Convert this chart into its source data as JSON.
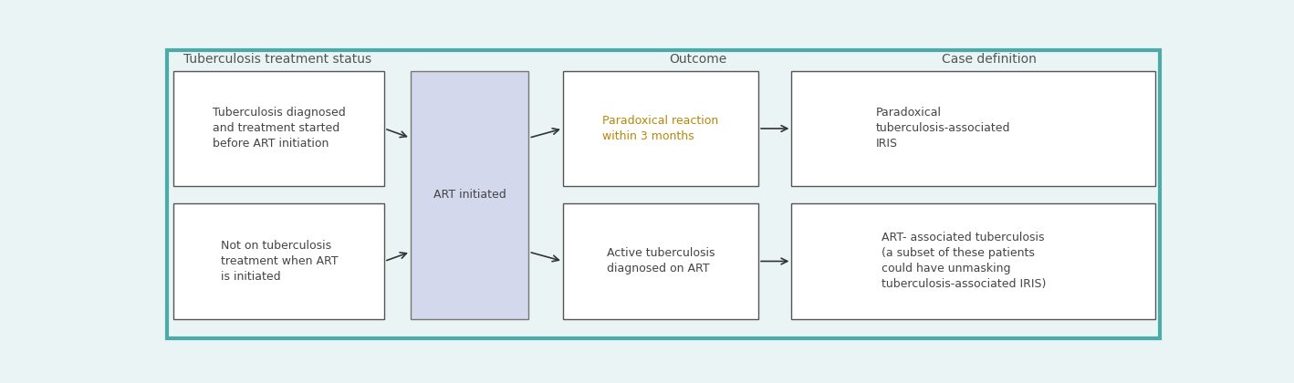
{
  "bg_color": "#eaf4f4",
  "outer_border_color": "#4aabaa",
  "fig_bg": "#eaf4f4",
  "header_color": "#555555",
  "box_border_color": "#555555",
  "box_fill_white": "#ffffff",
  "art_box_fill": "#d4d8ec",
  "art_box_border": "#777777",
  "text_color": "#444444",
  "arrow_color": "#333333",
  "headers": {
    "col1": "Tuberculosis treatment status",
    "col2": "Outcome",
    "col3": "Case definition"
  },
  "boxes": {
    "top_left": "Tuberculosis diagnosed\nand treatment started\nbefore ART initiation",
    "bottom_left": "Not on tuberculosis\ntreatment when ART\nis initiated",
    "art": "ART initiated",
    "top_outcome": "Paradoxical reaction\nwithin 3 months",
    "bottom_outcome": "Active tuberculosis\ndiagnosed on ART",
    "top_case": "Paradoxical\ntuberculosis-associated\nIRIS",
    "bottom_case": "ART- associated tuberculosis\n(a subset of these patients\ncould have unmasking\ntuberculosis-associated IRIS)"
  },
  "top_outcome_color": "#b8860b",
  "normal_text_color": "#444444"
}
